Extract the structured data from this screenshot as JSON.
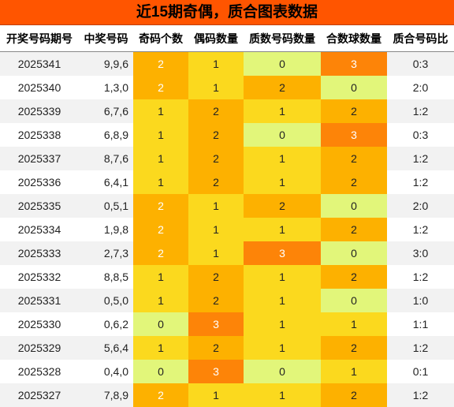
{
  "title": "近15期奇偶，质合图表数据",
  "headers": [
    "开奖号码期号",
    "中奖号码",
    "奇码个数",
    "偶码数量",
    "质数号码数量",
    "合数球数量",
    "质合号码比"
  ],
  "colors": {
    "0": "#e2f67a",
    "1": "#fbd91e",
    "2": "#fdb100",
    "3": "#fd8408"
  },
  "rows": [
    {
      "issue": "2025341",
      "numbers": "9,9,6",
      "odd": 2,
      "even": 1,
      "prime": 0,
      "composite": 3,
      "ratio": "0:3"
    },
    {
      "issue": "2025340",
      "numbers": "1,3,0",
      "odd": 2,
      "even": 1,
      "prime": 2,
      "composite": 0,
      "ratio": "2:0"
    },
    {
      "issue": "2025339",
      "numbers": "6,7,6",
      "odd": 1,
      "even": 2,
      "prime": 1,
      "composite": 2,
      "ratio": "1:2"
    },
    {
      "issue": "2025338",
      "numbers": "6,8,9",
      "odd": 1,
      "even": 2,
      "prime": 0,
      "composite": 3,
      "ratio": "0:3"
    },
    {
      "issue": "2025337",
      "numbers": "8,7,6",
      "odd": 1,
      "even": 2,
      "prime": 1,
      "composite": 2,
      "ratio": "1:2"
    },
    {
      "issue": "2025336",
      "numbers": "6,4,1",
      "odd": 1,
      "even": 2,
      "prime": 1,
      "composite": 2,
      "ratio": "1:2"
    },
    {
      "issue": "2025335",
      "numbers": "0,5,1",
      "odd": 2,
      "even": 1,
      "prime": 2,
      "composite": 0,
      "ratio": "2:0"
    },
    {
      "issue": "2025334",
      "numbers": "1,9,8",
      "odd": 2,
      "even": 1,
      "prime": 1,
      "composite": 2,
      "ratio": "1:2"
    },
    {
      "issue": "2025333",
      "numbers": "2,7,3",
      "odd": 2,
      "even": 1,
      "prime": 3,
      "composite": 0,
      "ratio": "3:0"
    },
    {
      "issue": "2025332",
      "numbers": "8,8,5",
      "odd": 1,
      "even": 2,
      "prime": 1,
      "composite": 2,
      "ratio": "1:2"
    },
    {
      "issue": "2025331",
      "numbers": "0,5,0",
      "odd": 1,
      "even": 2,
      "prime": 1,
      "composite": 0,
      "ratio": "1:0"
    },
    {
      "issue": "2025330",
      "numbers": "0,6,2",
      "odd": 0,
      "even": 3,
      "prime": 1,
      "composite": 1,
      "ratio": "1:1"
    },
    {
      "issue": "2025329",
      "numbers": "5,6,4",
      "odd": 1,
      "even": 2,
      "prime": 1,
      "composite": 2,
      "ratio": "1:2"
    },
    {
      "issue": "2025328",
      "numbers": "0,4,0",
      "odd": 0,
      "even": 3,
      "prime": 0,
      "composite": 1,
      "ratio": "0:1"
    },
    {
      "issue": "2025327",
      "numbers": "7,8,9",
      "odd": 2,
      "even": 1,
      "prime": 1,
      "composite": 2,
      "ratio": "1:2"
    }
  ]
}
